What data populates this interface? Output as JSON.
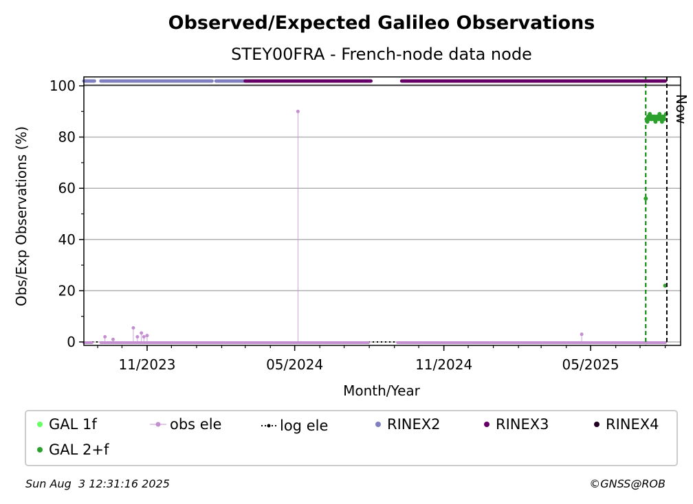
{
  "chart_data": {
    "type": "scatter",
    "title": "Observed/Expected Galileo Observations",
    "subtitle": "STEY00FRA - French-node data node",
    "xlabel": "Month/Year",
    "ylabel": "Obs/Exp Observations (%)",
    "ylim": [
      0,
      100
    ],
    "yticks": [
      0,
      20,
      40,
      60,
      80,
      100
    ],
    "xlim": [
      "2023-08-15",
      "2025-08-20"
    ],
    "xticks": [
      {
        "date": "2023-11-01",
        "label": "11/2023"
      },
      {
        "date": "2024-05-01",
        "label": "05/2024"
      },
      {
        "date": "2024-11-01",
        "label": "11/2024"
      },
      {
        "date": "2025-05-01",
        "label": "05/2025"
      }
    ],
    "grid": "y",
    "now_label": "Now",
    "now_date": "2025-08-03",
    "gal_start_date": "2025-07-08",
    "colors": {
      "gal1f": "#66ff66",
      "gal2f": "#2ca02c",
      "obs_ele": "#c38fd0",
      "log_ele": "#000000",
      "rinex2": "#8080c0",
      "rinex3": "#660066",
      "rinex4": "#220022",
      "gal_vline": "#008000",
      "grid": "#b0b0b0"
    },
    "series": [
      {
        "name": "GAL 2+f",
        "x": [
          "2025-07-08",
          "2025-07-09",
          "2025-07-10",
          "2025-07-11",
          "2025-07-12",
          "2025-07-13",
          "2025-07-14",
          "2025-07-15",
          "2025-07-16",
          "2025-07-17",
          "2025-07-18",
          "2025-07-19",
          "2025-07-20",
          "2025-07-21",
          "2025-07-22",
          "2025-07-23",
          "2025-07-24",
          "2025-07-25",
          "2025-07-26",
          "2025-07-27",
          "2025-07-28",
          "2025-07-29",
          "2025-07-30",
          "2025-07-31",
          "2025-08-01",
          "2025-08-02"
        ],
        "y": [
          56,
          87,
          86,
          88,
          87,
          89,
          88,
          87,
          88,
          88,
          87,
          88,
          86,
          87,
          88,
          88,
          87,
          89,
          88,
          87,
          86,
          88,
          88,
          87,
          22,
          89
        ]
      },
      {
        "name": "obs ele",
        "x": [
          "2023-09-10",
          "2023-09-20",
          "2023-10-15",
          "2023-10-20",
          "2023-10-25",
          "2023-10-28",
          "2023-11-01",
          "2024-05-05",
          "2025-04-20"
        ],
        "y": [
          2,
          1,
          5.5,
          2,
          3.5,
          2,
          2.5,
          90,
          3
        ]
      }
    ],
    "obs_ele_baseline": {
      "y": 0,
      "segments": [
        [
          "2023-08-15",
          "2023-08-25"
        ],
        [
          "2023-09-05",
          "2024-07-31"
        ],
        [
          "2024-09-05",
          "2025-08-01"
        ]
      ]
    },
    "log_ele_baseline": {
      "y": 0,
      "segments": [
        [
          "2023-08-15",
          "2025-08-03"
        ]
      ]
    },
    "rinex_bars": [
      {
        "format": "RINEX2",
        "start": "2023-08-15",
        "end": "2023-08-28"
      },
      {
        "format": "RINEX2",
        "start": "2023-09-05",
        "end": "2024-01-20"
      },
      {
        "format": "RINEX2",
        "start": "2024-01-25",
        "end": "2024-03-01"
      },
      {
        "format": "RINEX3",
        "start": "2024-03-01",
        "end": "2024-08-03"
      },
      {
        "format": "RINEX3",
        "start": "2024-09-10",
        "end": "2025-08-01"
      }
    ],
    "legend": [
      {
        "label": "GAL 1f",
        "key": "gal1f",
        "marker": "dot"
      },
      {
        "label": "obs ele",
        "key": "obs_ele",
        "marker": "line-dot"
      },
      {
        "label": "log ele",
        "key": "log_ele",
        "marker": "dotted-line"
      },
      {
        "label": "RINEX2",
        "key": "rinex2",
        "marker": "dot"
      },
      {
        "label": "RINEX3",
        "key": "rinex3",
        "marker": "dot"
      },
      {
        "label": "RINEX4",
        "key": "rinex4",
        "marker": "dot"
      },
      {
        "label": "GAL 2+f",
        "key": "gal2f",
        "marker": "dot"
      }
    ],
    "legend_position": "bottom"
  },
  "footer": {
    "timestamp": "Sun Aug  3 12:31:16 2025",
    "credit": "©GNSS@ROB"
  }
}
